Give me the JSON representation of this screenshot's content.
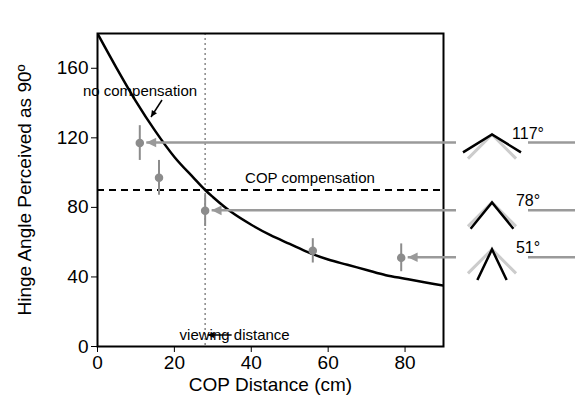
{
  "chart_data": {
    "type": "line",
    "xlabel": "COP Distance (cm)",
    "ylabel": "Hinge Angle Perceived as 90º",
    "xlim": [
      0,
      90
    ],
    "ylim": [
      0,
      180
    ],
    "xticks": [
      0,
      20,
      40,
      60,
      80
    ],
    "yticks": [
      0,
      40,
      80,
      120,
      160
    ],
    "grid": false,
    "series": [
      {
        "name": "no compensation",
        "type": "line",
        "color": "#000000",
        "line_style": "solid",
        "x": [
          0,
          5,
          10,
          15,
          20,
          25,
          28,
          30,
          35,
          40,
          45,
          50,
          55,
          60,
          65,
          70,
          75,
          80,
          85,
          90
        ],
        "values": [
          180,
          160,
          141,
          124,
          109,
          97,
          90,
          86,
          77,
          70,
          64,
          59,
          54,
          50,
          47,
          44,
          41,
          39,
          37,
          35
        ]
      },
      {
        "type": "scatter",
        "color": "#8c8c8c",
        "marker": "circle",
        "x": [
          11,
          16,
          28,
          56,
          79
        ],
        "values": [
          117,
          97,
          78,
          55,
          51
        ],
        "errors": [
          10,
          10,
          9,
          7,
          8
        ]
      }
    ],
    "annotations": [
      {
        "axis": "y",
        "value": 90,
        "label": "COP compensation",
        "line_style": "dashed",
        "color": "#000000"
      },
      {
        "axis": "x",
        "value": 28,
        "label": "viewing distance",
        "line_style": "dotted",
        "color": "#888888"
      }
    ],
    "hinge_labels": [
      {
        "value": 117,
        "label": "117°"
      },
      {
        "value": 78,
        "label": "78°"
      },
      {
        "value": 51,
        "label": "51°"
      }
    ]
  }
}
